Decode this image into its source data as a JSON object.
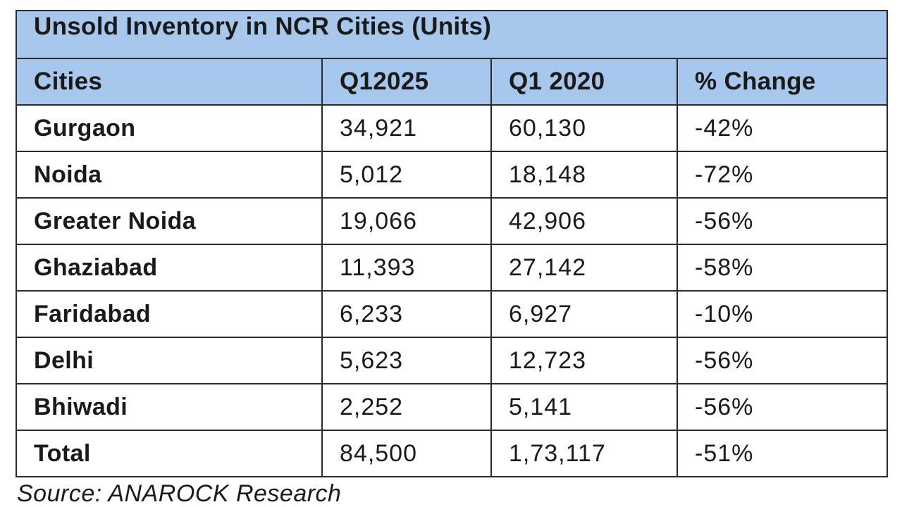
{
  "chart_data": {
    "type": "table",
    "title": "Unsold Inventory in NCR Cities (Units)",
    "columns": [
      "Cities",
      "Q12025",
      "Q1 2020",
      "% Change"
    ],
    "rows": [
      [
        "Gurgaon",
        "34,921",
        "60,130",
        "-42%"
      ],
      [
        "Noida",
        "5,012",
        "18,148",
        "-72%"
      ],
      [
        "Greater Noida",
        "19,066",
        "42,906",
        "-56%"
      ],
      [
        "Ghaziabad",
        "11,393",
        "27,142",
        "-58%"
      ],
      [
        "Faridabad",
        "6,233",
        "6,927",
        "-10%"
      ],
      [
        "Delhi",
        "5,623",
        "12,723",
        "-56%"
      ],
      [
        "Bhiwadi",
        "2,252",
        "5,141",
        "-56%"
      ],
      [
        "Total",
        "84,500",
        "1,73,117",
        "-51%"
      ]
    ],
    "header_color": "#a7c8ec",
    "source": "Source: ANAROCK Research"
  }
}
